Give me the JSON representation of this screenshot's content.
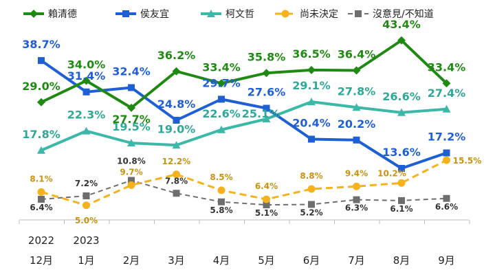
{
  "chart_data": {
    "type": "line",
    "categories": [
      "12月",
      "1月",
      "2月",
      "3月",
      "4月",
      "5月",
      "6月",
      "7月",
      "8月",
      "9月"
    ],
    "year_labels": [
      "2022",
      "2023"
    ],
    "ylim": [
      0,
      48
    ],
    "grid": false,
    "legend_position": "top",
    "series": [
      {
        "name": "賴清德",
        "color": "#1f8a12",
        "marker": "diamond",
        "dash": "solid",
        "values": [
          29.0,
          34.0,
          27.7,
          36.2,
          33.4,
          35.8,
          36.5,
          36.4,
          43.4,
          33.4
        ],
        "labels": [
          "29.0%",
          "34.0%",
          "27.7%",
          "36.2%",
          "33.4%",
          "35.8%",
          "36.5%",
          "36.4%",
          "43.4%",
          "33.4%"
        ]
      },
      {
        "name": "侯友宜",
        "color": "#1f5fd6",
        "marker": "square",
        "dash": "solid",
        "values": [
          38.7,
          31.4,
          32.4,
          24.8,
          29.7,
          27.6,
          20.4,
          20.2,
          13.6,
          17.2
        ],
        "labels": [
          "38.7%",
          "31.4%",
          "32.4%",
          "24.8%",
          "29.7%",
          "27.6%",
          "20.4%",
          "20.2%",
          "13.6%",
          "17.2%"
        ]
      },
      {
        "name": "柯文哲",
        "color": "#3bb8a8",
        "marker": "triangle",
        "dash": "solid",
        "values": [
          17.8,
          22.3,
          19.5,
          19.0,
          22.6,
          25.1,
          29.1,
          27.8,
          26.6,
          27.4
        ],
        "labels": [
          "17.8%",
          "22.3%",
          "19.5%",
          "19.0%",
          "22.6%",
          "25.1%",
          "29.1%",
          "27.8%",
          "26.6%",
          "27.4%"
        ]
      },
      {
        "name": "尚未決定",
        "color": "#f5b21b",
        "marker": "circle",
        "dash": "dashed",
        "values": [
          8.1,
          5.0,
          9.7,
          12.2,
          8.5,
          6.4,
          8.8,
          9.4,
          10.2,
          15.5
        ],
        "labels": [
          "8.1%",
          "5.0%",
          "9.7%",
          "12.2%",
          "8.5%",
          "6.4%",
          "8.8%",
          "9.4%",
          "10.2%",
          "15.5%"
        ]
      },
      {
        "name": "沒意見/不知道",
        "color": "#6e6e6e",
        "marker": "square",
        "dash": "dashed",
        "values": [
          6.4,
          7.2,
          10.8,
          7.8,
          5.8,
          5.1,
          5.2,
          6.3,
          6.1,
          6.6
        ],
        "labels": [
          "6.4%",
          "7.2%",
          "10.8%",
          "7.8%",
          "5.8%",
          "5.1%",
          "5.2%",
          "6.3%",
          "6.1%",
          "6.6%"
        ]
      }
    ]
  }
}
